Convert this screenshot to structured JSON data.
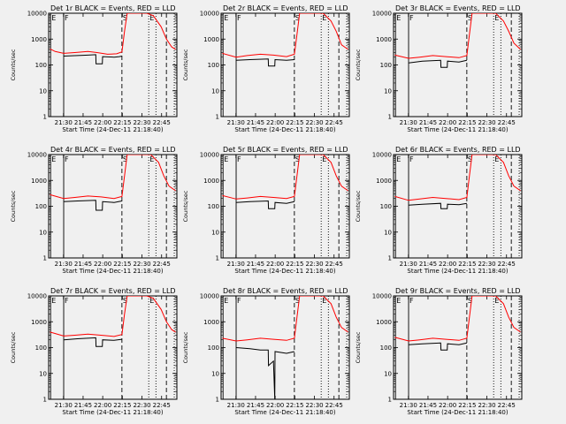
{
  "chart_data": {
    "type": "line",
    "title_template": "Det {det}r BLACK = Events, RED = LLD",
    "xlabel": "Start Time (24-Dec-11 21:18:40)",
    "ylabel": "Counts/sec",
    "x_tick_labels": [
      "21:30",
      "21:45",
      "22:00",
      "22:15",
      "22:30",
      "22:45"
    ],
    "x_tick_minutes": [
      11.33,
      26.33,
      41.33,
      56.33,
      71.33,
      86.33
    ],
    "x_range_minutes": [
      0,
      98
    ],
    "y_scale": "log",
    "ylim": [
      1,
      10000
    ],
    "y_tick_labels": [
      "1",
      "10",
      "100",
      "1000",
      "10000"
    ],
    "series": [
      {
        "name": "Events",
        "color": "#000000"
      },
      {
        "name": "LLD",
        "color": "#ff0000"
      }
    ],
    "markers": [
      {
        "label": "E",
        "minute": 1.5,
        "style": "solid"
      },
      {
        "label": "F",
        "minute": 11.5,
        "style": "solid"
      },
      {
        "label": "S",
        "minute": 56.0,
        "style": "dash"
      },
      {
        "label": "E",
        "minute": 76.5,
        "style": "dot"
      },
      {
        "label": "",
        "minute": 82.0,
        "style": "dot"
      },
      {
        "label": "",
        "minute": 90.0,
        "style": "dash"
      },
      {
        "label": "",
        "minute": 96.0,
        "style": "dot"
      }
    ],
    "panels": [
      {
        "det": "1",
        "dip_minute": 41.5,
        "llp_level": 350,
        "events": [
          [
            11.5,
            220
          ],
          [
            22,
            230
          ],
          [
            30,
            240
          ],
          [
            36,
            250
          ],
          [
            36.2,
            110
          ],
          [
            41,
            110
          ],
          [
            41.2,
            210
          ],
          [
            50,
            200
          ],
          [
            54,
            210
          ],
          [
            56,
            220
          ]
        ],
        "lld": [
          [
            1,
            420
          ],
          [
            5,
            330
          ],
          [
            11.5,
            280
          ],
          [
            20,
            300
          ],
          [
            30,
            330
          ],
          [
            37,
            300
          ],
          [
            45,
            260
          ],
          [
            52,
            270
          ],
          [
            56,
            320
          ],
          [
            58,
            2000
          ],
          [
            60,
            10000
          ],
          [
            75,
            10000
          ],
          [
            80,
            8000
          ],
          [
            86,
            3000
          ],
          [
            90,
            1000
          ],
          [
            94,
            500
          ],
          [
            97,
            400
          ]
        ]
      },
      {
        "det": "2",
        "dip_minute": 41.5,
        "events": [
          [
            11.5,
            150
          ],
          [
            22,
            160
          ],
          [
            36,
            170
          ],
          [
            36.2,
            90
          ],
          [
            41,
            90
          ],
          [
            41.2,
            160
          ],
          [
            50,
            150
          ],
          [
            56,
            160
          ]
        ],
        "lld": [
          [
            1,
            280
          ],
          [
            11.5,
            200
          ],
          [
            20,
            230
          ],
          [
            30,
            260
          ],
          [
            40,
            240
          ],
          [
            50,
            210
          ],
          [
            56,
            260
          ],
          [
            58,
            1500
          ],
          [
            60,
            10000
          ],
          [
            78,
            10000
          ],
          [
            84,
            5000
          ],
          [
            88,
            2000
          ],
          [
            92,
            600
          ],
          [
            97,
            400
          ]
        ]
      },
      {
        "det": "3",
        "dip_minute": 41.5,
        "events": [
          [
            11.5,
            120
          ],
          [
            22,
            140
          ],
          [
            36,
            150
          ],
          [
            36.2,
            80
          ],
          [
            41,
            80
          ],
          [
            41.2,
            140
          ],
          [
            50,
            130
          ],
          [
            56,
            150
          ]
        ],
        "lld": [
          [
            1,
            240
          ],
          [
            11.5,
            180
          ],
          [
            20,
            200
          ],
          [
            30,
            230
          ],
          [
            40,
            210
          ],
          [
            50,
            190
          ],
          [
            56,
            230
          ],
          [
            58,
            1500
          ],
          [
            60,
            10000
          ],
          [
            78,
            10000
          ],
          [
            84,
            5000
          ],
          [
            88,
            2000
          ],
          [
            92,
            700
          ],
          [
            97,
            400
          ]
        ]
      },
      {
        "det": "4",
        "dip_minute": 41.5,
        "events": [
          [
            11.5,
            150
          ],
          [
            22,
            160
          ],
          [
            36,
            170
          ],
          [
            36.2,
            70
          ],
          [
            41,
            70
          ],
          [
            41.2,
            150
          ],
          [
            50,
            140
          ],
          [
            56,
            160
          ]
        ],
        "lld": [
          [
            1,
            280
          ],
          [
            11.5,
            200
          ],
          [
            20,
            220
          ],
          [
            30,
            250
          ],
          [
            40,
            230
          ],
          [
            50,
            200
          ],
          [
            56,
            240
          ],
          [
            58,
            1500
          ],
          [
            60,
            10000
          ],
          [
            78,
            10000
          ],
          [
            84,
            5000
          ],
          [
            88,
            1500
          ],
          [
            92,
            600
          ],
          [
            97,
            400
          ]
        ]
      },
      {
        "det": "5",
        "dip_minute": 41.5,
        "events": [
          [
            11.5,
            140
          ],
          [
            22,
            150
          ],
          [
            36,
            160
          ],
          [
            36.2,
            80
          ],
          [
            41,
            80
          ],
          [
            41.2,
            140
          ],
          [
            50,
            130
          ],
          [
            56,
            150
          ]
        ],
        "lld": [
          [
            1,
            260
          ],
          [
            11.5,
            190
          ],
          [
            20,
            210
          ],
          [
            30,
            240
          ],
          [
            40,
            220
          ],
          [
            50,
            200
          ],
          [
            56,
            240
          ],
          [
            58,
            1500
          ],
          [
            60,
            10000
          ],
          [
            78,
            10000
          ],
          [
            84,
            5000
          ],
          [
            88,
            1500
          ],
          [
            92,
            600
          ],
          [
            97,
            400
          ]
        ]
      },
      {
        "det": "6",
        "dip_minute": 41.5,
        "events": [
          [
            11.5,
            110
          ],
          [
            22,
            120
          ],
          [
            36,
            130
          ],
          [
            36.2,
            80
          ],
          [
            41,
            80
          ],
          [
            41.2,
            120
          ],
          [
            50,
            115
          ],
          [
            56,
            130
          ]
        ],
        "lld": [
          [
            1,
            240
          ],
          [
            11.5,
            170
          ],
          [
            20,
            190
          ],
          [
            30,
            220
          ],
          [
            40,
            200
          ],
          [
            50,
            180
          ],
          [
            56,
            220
          ],
          [
            58,
            1500
          ],
          [
            60,
            10000
          ],
          [
            78,
            10000
          ],
          [
            84,
            5000
          ],
          [
            88,
            1500
          ],
          [
            92,
            600
          ],
          [
            97,
            400
          ]
        ]
      },
      {
        "det": "7",
        "dip_minute": 41.5,
        "events": [
          [
            11.5,
            200
          ],
          [
            22,
            220
          ],
          [
            36,
            240
          ],
          [
            36.2,
            110
          ],
          [
            41,
            110
          ],
          [
            41.2,
            200
          ],
          [
            50,
            190
          ],
          [
            56,
            210
          ]
        ],
        "lld": [
          [
            1,
            400
          ],
          [
            11.5,
            280
          ],
          [
            20,
            300
          ],
          [
            30,
            330
          ],
          [
            40,
            300
          ],
          [
            50,
            270
          ],
          [
            56,
            320
          ],
          [
            58,
            2000
          ],
          [
            60,
            10000
          ],
          [
            75,
            10000
          ],
          [
            80,
            8000
          ],
          [
            86,
            3000
          ],
          [
            90,
            1000
          ],
          [
            94,
            500
          ],
          [
            97,
            400
          ]
        ]
      },
      {
        "det": "8",
        "dip_minute": 41.5,
        "events": [
          [
            11.5,
            100
          ],
          [
            22,
            90
          ],
          [
            30,
            80
          ],
          [
            36,
            80
          ],
          [
            36.2,
            20
          ],
          [
            40,
            30
          ],
          [
            41,
            1
          ],
          [
            41.2,
            70
          ],
          [
            50,
            60
          ],
          [
            56,
            70
          ]
        ],
        "lld": [
          [
            1,
            230
          ],
          [
            11.5,
            180
          ],
          [
            20,
            200
          ],
          [
            30,
            230
          ],
          [
            40,
            210
          ],
          [
            50,
            190
          ],
          [
            56,
            230
          ],
          [
            58,
            1500
          ],
          [
            60,
            10000
          ],
          [
            78,
            10000
          ],
          [
            84,
            5000
          ],
          [
            88,
            1500
          ],
          [
            92,
            600
          ],
          [
            97,
            400
          ]
        ]
      },
      {
        "det": "9",
        "dip_minute": 41.5,
        "events": [
          [
            11.5,
            130
          ],
          [
            22,
            140
          ],
          [
            36,
            150
          ],
          [
            36.2,
            80
          ],
          [
            41,
            80
          ],
          [
            41.2,
            140
          ],
          [
            50,
            130
          ],
          [
            56,
            150
          ]
        ],
        "lld": [
          [
            1,
            250
          ],
          [
            11.5,
            180
          ],
          [
            20,
            200
          ],
          [
            30,
            230
          ],
          [
            40,
            210
          ],
          [
            50,
            190
          ],
          [
            56,
            230
          ],
          [
            58,
            1500
          ],
          [
            60,
            10000
          ],
          [
            78,
            10000
          ],
          [
            84,
            5000
          ],
          [
            88,
            1500
          ],
          [
            92,
            600
          ],
          [
            97,
            400
          ]
        ]
      }
    ]
  }
}
